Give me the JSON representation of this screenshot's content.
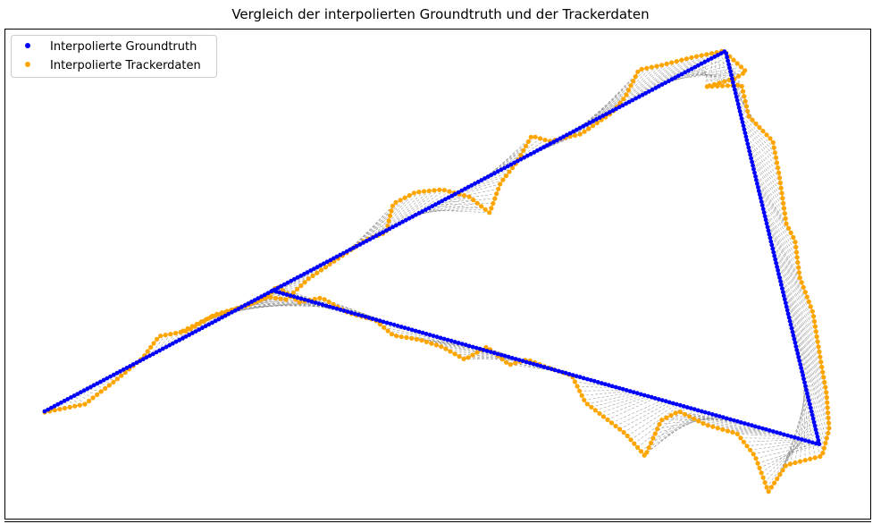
{
  "chart_data": {
    "type": "scatter",
    "title": "Vergleich der interpolierten Groundtruth und der Trackerdaten",
    "xlabel": "",
    "ylabel": "",
    "axes_visible": false,
    "grid": false,
    "legend_position": "top-left",
    "colors": {
      "groundtruth": "#0000ff",
      "tracker": "#ffa500",
      "connector": "#808080",
      "tracker_line": "#ffa500"
    },
    "series": [
      {
        "name": "Interpolierte Groundtruth",
        "color": "#0000ff",
        "path": [
          [
            50,
            460
          ],
          [
            812,
            57
          ],
          [
            917,
            497
          ],
          [
            305,
            325
          ]
        ],
        "samples": 470
      },
      {
        "name": "Interpolierte Trackerdaten",
        "color": "#ffa500",
        "path": [
          [
            50,
            461
          ],
          [
            95,
            452
          ],
          [
            130,
            425
          ],
          [
            160,
            400
          ],
          [
            178,
            376
          ],
          [
            210,
            370
          ],
          [
            240,
            352
          ],
          [
            275,
            342
          ],
          [
            300,
            332
          ],
          [
            320,
            335
          ],
          [
            345,
            312
          ],
          [
            380,
            288
          ],
          [
            410,
            268
          ],
          [
            432,
            260
          ],
          [
            440,
            228
          ],
          [
            465,
            215
          ],
          [
            495,
            212
          ],
          [
            525,
            220
          ],
          [
            548,
            238
          ],
          [
            560,
            205
          ],
          [
            578,
            182
          ],
          [
            595,
            152
          ],
          [
            615,
            158
          ],
          [
            650,
            150
          ],
          [
            685,
            126
          ],
          [
            700,
            108
          ],
          [
            715,
            78
          ],
          [
            740,
            73
          ],
          [
            775,
            64
          ],
          [
            810,
            57
          ],
          [
            835,
            80
          ],
          [
            822,
            88
          ],
          [
            790,
            97
          ],
          [
            830,
            95
          ],
          [
            838,
            130
          ],
          [
            865,
            158
          ],
          [
            872,
            195
          ],
          [
            880,
            250
          ],
          [
            890,
            270
          ],
          [
            895,
            310
          ],
          [
            910,
            350
          ],
          [
            918,
            400
          ],
          [
            925,
            440
          ],
          [
            928,
            480
          ],
          [
            920,
            510
          ],
          [
            880,
            520
          ],
          [
            860,
            550
          ],
          [
            845,
            510
          ],
          [
            825,
            485
          ],
          [
            790,
            475
          ],
          [
            760,
            460
          ],
          [
            740,
            470
          ],
          [
            722,
            510
          ],
          [
            700,
            485
          ],
          [
            655,
            450
          ],
          [
            640,
            420
          ],
          [
            610,
            410
          ],
          [
            590,
            402
          ],
          [
            570,
            408
          ],
          [
            545,
            388
          ],
          [
            520,
            402
          ],
          [
            495,
            388
          ],
          [
            470,
            380
          ],
          [
            440,
            375
          ],
          [
            420,
            358
          ],
          [
            390,
            350
          ],
          [
            360,
            333
          ],
          [
            335,
            338
          ],
          [
            310,
            320
          ],
          [
            300,
            332
          ],
          [
            275,
            342
          ],
          [
            235,
            355
          ],
          [
            205,
            370
          ]
        ],
        "samples": 420
      }
    ]
  }
}
